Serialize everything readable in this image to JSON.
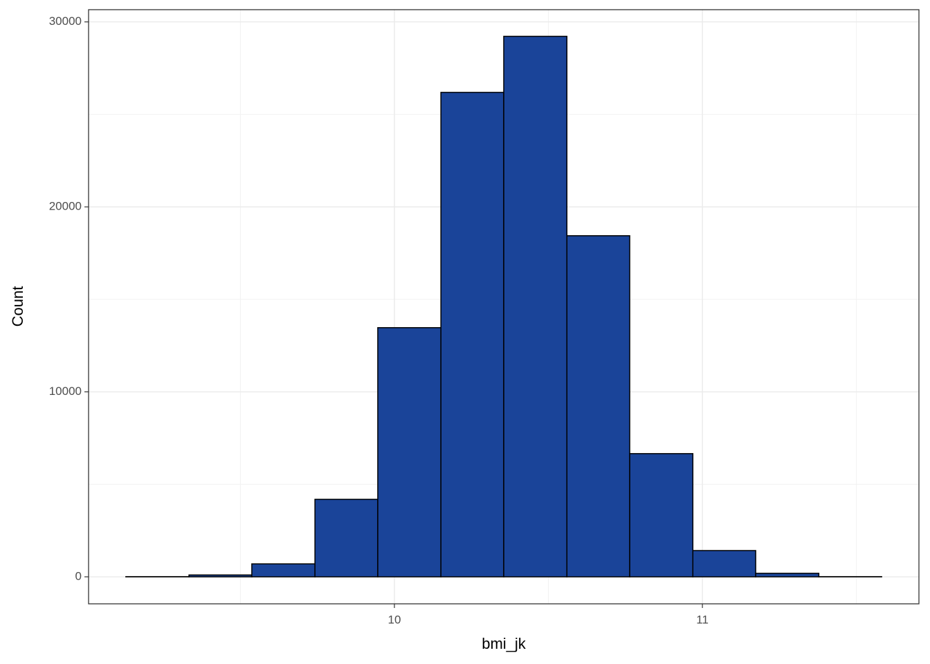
{
  "chart_data": {
    "type": "histogram",
    "x_label": "bmi_jk",
    "y_label": "Count",
    "bins": [
      9.128,
      9.333,
      9.537,
      9.742,
      9.946,
      10.151,
      10.355,
      10.56,
      10.764,
      10.969,
      11.173,
      11.378,
      11.582
    ],
    "values": [
      10,
      100,
      700,
      4190,
      13470,
      26190,
      29220,
      18440,
      6660,
      1420,
      190,
      10
    ],
    "color": "#1a4499",
    "edgecolor": "#000000",
    "xlim": [
      9.007,
      11.703
    ],
    "xticks": [
      10,
      11
    ],
    "xminor": [
      9.5,
      10.5,
      11.5
    ],
    "ylim": [
      -1460,
      30660
    ],
    "yticks": [
      0,
      10000,
      20000,
      30000
    ],
    "yminor": [
      5000,
      15000,
      25000
    ],
    "grid": true
  }
}
